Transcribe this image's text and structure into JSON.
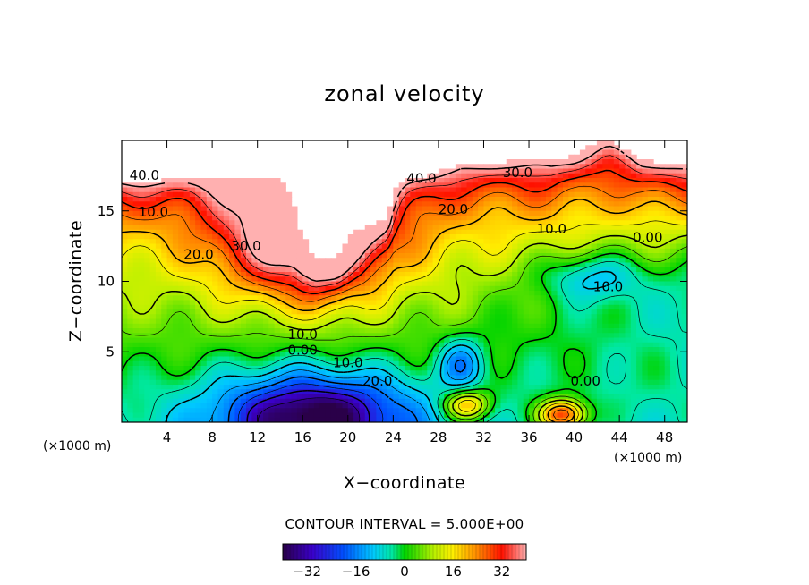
{
  "chart_data": {
    "type": "heatmap",
    "title": "zonal velocity",
    "xlabel": "X−coordinate",
    "ylabel": "Z−coordinate",
    "x_unit": "(×1000 m)",
    "z_unit": "(×1000 m)",
    "xlim": [
      0,
      50
    ],
    "ylim": [
      0,
      20
    ],
    "x_ticks": [
      "4",
      "8",
      "12",
      "16",
      "20",
      "24",
      "28",
      "32",
      "36",
      "40",
      "44",
      "48"
    ],
    "y_ticks": [
      "5",
      "10",
      "15"
    ],
    "contour_interval_text": "CONTOUR INTERVAL = 5.000E+00",
    "contour_interval": 5.0,
    "colorbar": {
      "range": [
        -40,
        40
      ],
      "ticks": [
        "−32",
        "−16",
        "0",
        "16",
        "32"
      ]
    },
    "contour_labels": [
      {
        "text": "40.0",
        "x": 2.0,
        "z": 17.2
      },
      {
        "text": "10.0",
        "x": 2.8,
        "z": 14.6
      },
      {
        "text": "20.0",
        "x": 6.8,
        "z": 11.6
      },
      {
        "text": "30.0",
        "x": 11.0,
        "z": 12.2
      },
      {
        "text": "40.0",
        "x": 26.5,
        "z": 17.0
      },
      {
        "text": "20.0",
        "x": 29.3,
        "z": 14.8
      },
      {
        "text": "30.0",
        "x": 35.0,
        "z": 17.4
      },
      {
        "text": "10.0",
        "x": 38.0,
        "z": 13.4
      },
      {
        "text": "0.00",
        "x": 46.5,
        "z": 12.8
      },
      {
        "text": "10.0",
        "x": 43.0,
        "z": 9.3
      },
      {
        "text": "10.0",
        "x": 16.0,
        "z": 5.9
      },
      {
        "text": "0.00",
        "x": 16.0,
        "z": 4.8
      },
      {
        "text": "10.0",
        "x": 20.0,
        "z": 3.9
      },
      {
        "text": "20.0",
        "x": 22.6,
        "z": 2.6
      },
      {
        "text": "0.00",
        "x": 41.0,
        "z": 2.6
      }
    ],
    "field_features": [
      {
        "desc": "upper jet core",
        "x": 16,
        "z": 13,
        "value": 35,
        "sx": 5,
        "sz": 3
      },
      {
        "desc": "lower negative core",
        "x": 17,
        "z": 0.5,
        "value": -38,
        "sx": 6,
        "sz": 2.2
      },
      {
        "desc": "mid negative cell",
        "x": 30,
        "z": 4.2,
        "value": -18,
        "sx": 1.4,
        "sz": 1.3
      },
      {
        "desc": "right negative cell",
        "x": 41.5,
        "z": 10.3,
        "value": -14,
        "sx": 3,
        "sz": 1.2
      },
      {
        "desc": "surface positive cell",
        "x": 30.5,
        "z": 1.2,
        "value": 25,
        "sx": 1.5,
        "sz": 0.8
      },
      {
        "desc": "surface positive cell",
        "x": 39,
        "z": 0.5,
        "value": 35,
        "sx": 1.5,
        "sz": 0.8
      }
    ]
  }
}
